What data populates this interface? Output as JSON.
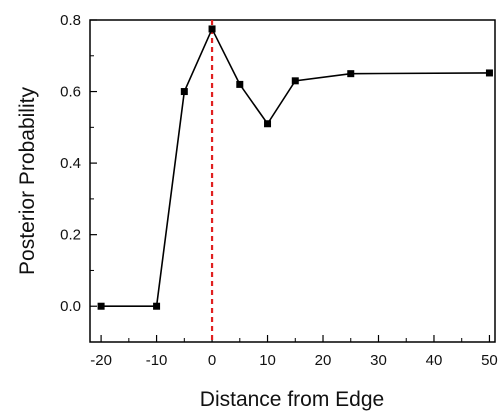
{
  "chart_data": {
    "type": "line",
    "title": "",
    "xlabel": "Distance from Edge",
    "ylabel": "Posterior Probability",
    "xlim": [
      -22,
      51
    ],
    "ylim": [
      -0.1,
      0.8
    ],
    "xticks": [
      -20,
      -10,
      0,
      10,
      20,
      30,
      40,
      50
    ],
    "xtick_labels": [
      "-20",
      "-10",
      "0",
      "10",
      "20",
      "30",
      "40",
      "50"
    ],
    "yticks": [
      0.0,
      0.2,
      0.4,
      0.6,
      0.8
    ],
    "ytick_labels": [
      "0.0",
      "0.2",
      "0.4",
      "0.6",
      "0.8"
    ],
    "grid": false,
    "legend": "none",
    "series": [
      {
        "x": [
          -20,
          -10,
          -5,
          0,
          5,
          10,
          15,
          25,
          50
        ],
        "y": [
          0.0,
          0.0,
          0.6,
          0.775,
          0.62,
          0.51,
          0.63,
          0.65,
          0.652
        ],
        "color": "#000000",
        "marker": "square"
      }
    ],
    "reference_line": {
      "axis": "x",
      "value": 0,
      "style": "dashed",
      "color": "#e02020"
    }
  }
}
